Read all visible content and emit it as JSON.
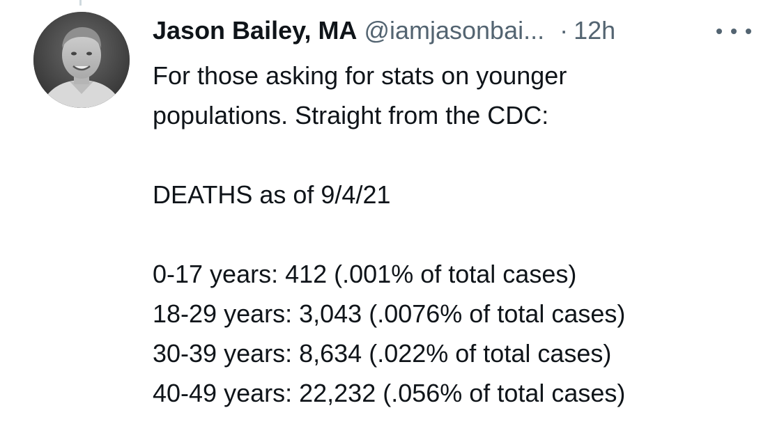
{
  "tweet": {
    "author": {
      "display_name": "Jason Bailey, MA",
      "handle": "@iamjasonbai...",
      "avatar_icon": "profile-photo"
    },
    "separator": "·",
    "timestamp": "12h",
    "more_icon": "ellipsis-icon",
    "body": {
      "intro_line_1": "For those asking for stats on younger",
      "intro_line_2": "populations. Straight from the CDC:",
      "deaths_heading": "DEATHS as of 9/4/21",
      "stats": [
        "0-17 years: 412 (.001% of total cases)",
        "18-29 years: 3,043 (.0076% of total cases)",
        "30-39 years: 8,634 (.022% of total cases)",
        "40-49 years: 22,232 (.056% of total cases)"
      ]
    }
  },
  "colors": {
    "text_primary": "#0f1419",
    "text_secondary": "#536471",
    "background": "#ffffff"
  }
}
